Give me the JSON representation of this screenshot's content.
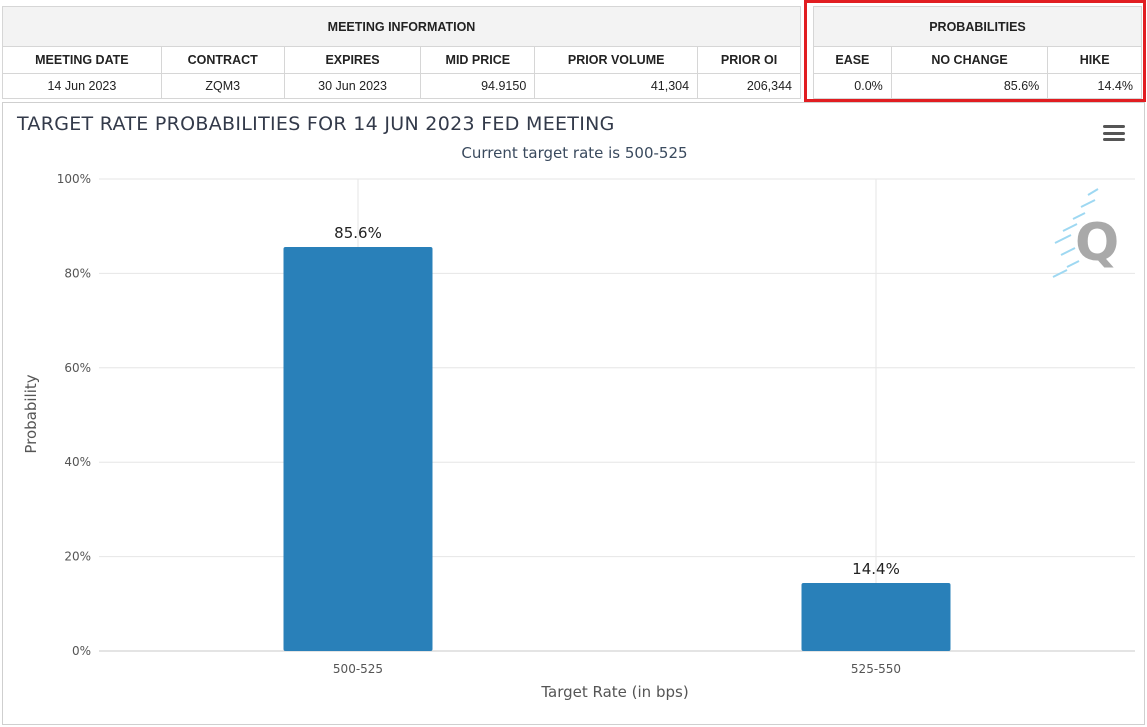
{
  "meeting_info": {
    "group_header": "MEETING INFORMATION",
    "columns": [
      "MEETING DATE",
      "CONTRACT",
      "EXPIRES",
      "MID PRICE",
      "PRIOR VOLUME",
      "PRIOR OI"
    ],
    "values": [
      "14 Jun 2023",
      "ZQM3",
      "30 Jun 2023",
      "94.9150",
      "41,304",
      "206,344"
    ]
  },
  "probabilities": {
    "group_header": "PROBABILITIES",
    "columns": [
      "EASE",
      "NO CHANGE",
      "HIKE"
    ],
    "values": [
      "0.0%",
      "85.6%",
      "14.4%"
    ],
    "highlight_color": "#e11d21"
  },
  "chart_data": {
    "type": "bar",
    "title": "TARGET RATE PROBABILITIES FOR 14 JUN 2023 FED MEETING",
    "subtitle": "Current target rate is 500-525",
    "xlabel": "Target Rate (in bps)",
    "ylabel": "Probability",
    "categories": [
      "500-525",
      "525-550"
    ],
    "values": [
      85.6,
      14.4
    ],
    "data_labels": [
      "85.6%",
      "14.4%"
    ],
    "ylim": [
      0,
      100
    ],
    "yticks": [
      0,
      20,
      40,
      60,
      80,
      100
    ],
    "ytick_labels": [
      "0%",
      "20%",
      "40%",
      "60%",
      "80%",
      "100%"
    ],
    "grid": true,
    "bar_color": "#2980b9",
    "legend": "none"
  },
  "icons": {
    "menu": "hamburger-menu-icon",
    "watermark": "cme-q-logo-icon"
  }
}
